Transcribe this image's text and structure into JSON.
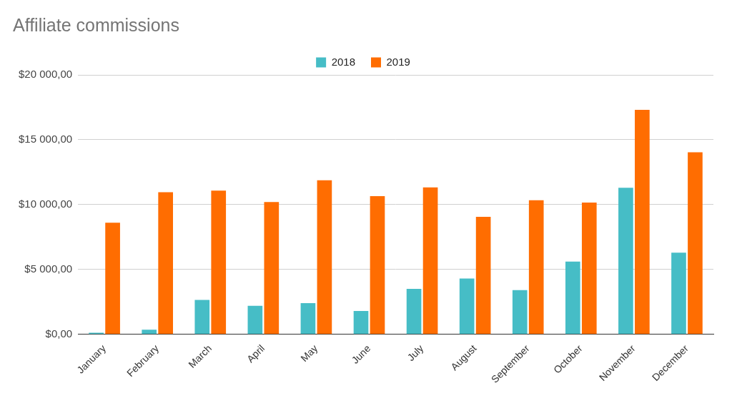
{
  "chart_data": {
    "type": "bar",
    "title": "Affiliate commissions",
    "categories": [
      "January",
      "February",
      "March",
      "April",
      "May",
      "June",
      "July",
      "August",
      "September",
      "October",
      "November",
      "December"
    ],
    "series": [
      {
        "name": "2018",
        "color": "#46bdc6",
        "values": [
          120,
          350,
          2650,
          2200,
          2400,
          1800,
          3500,
          4300,
          3400,
          5600,
          11300,
          6300
        ]
      },
      {
        "name": "2019",
        "color": "#ff6d01",
        "values": [
          8600,
          10950,
          11080,
          10200,
          11880,
          10650,
          11320,
          9050,
          10340,
          10150,
          17300,
          14030
        ]
      }
    ],
    "ylim": [
      0,
      20000
    ],
    "yticks": [
      {
        "value": 0,
        "label": "$0,00"
      },
      {
        "value": 5000,
        "label": "$5 000,00"
      },
      {
        "value": 10000,
        "label": "$10 000,00"
      },
      {
        "value": 15000,
        "label": "$15 000,00"
      },
      {
        "value": 20000,
        "label": "$20 000,00"
      }
    ],
    "grid": true,
    "legend": "top"
  }
}
